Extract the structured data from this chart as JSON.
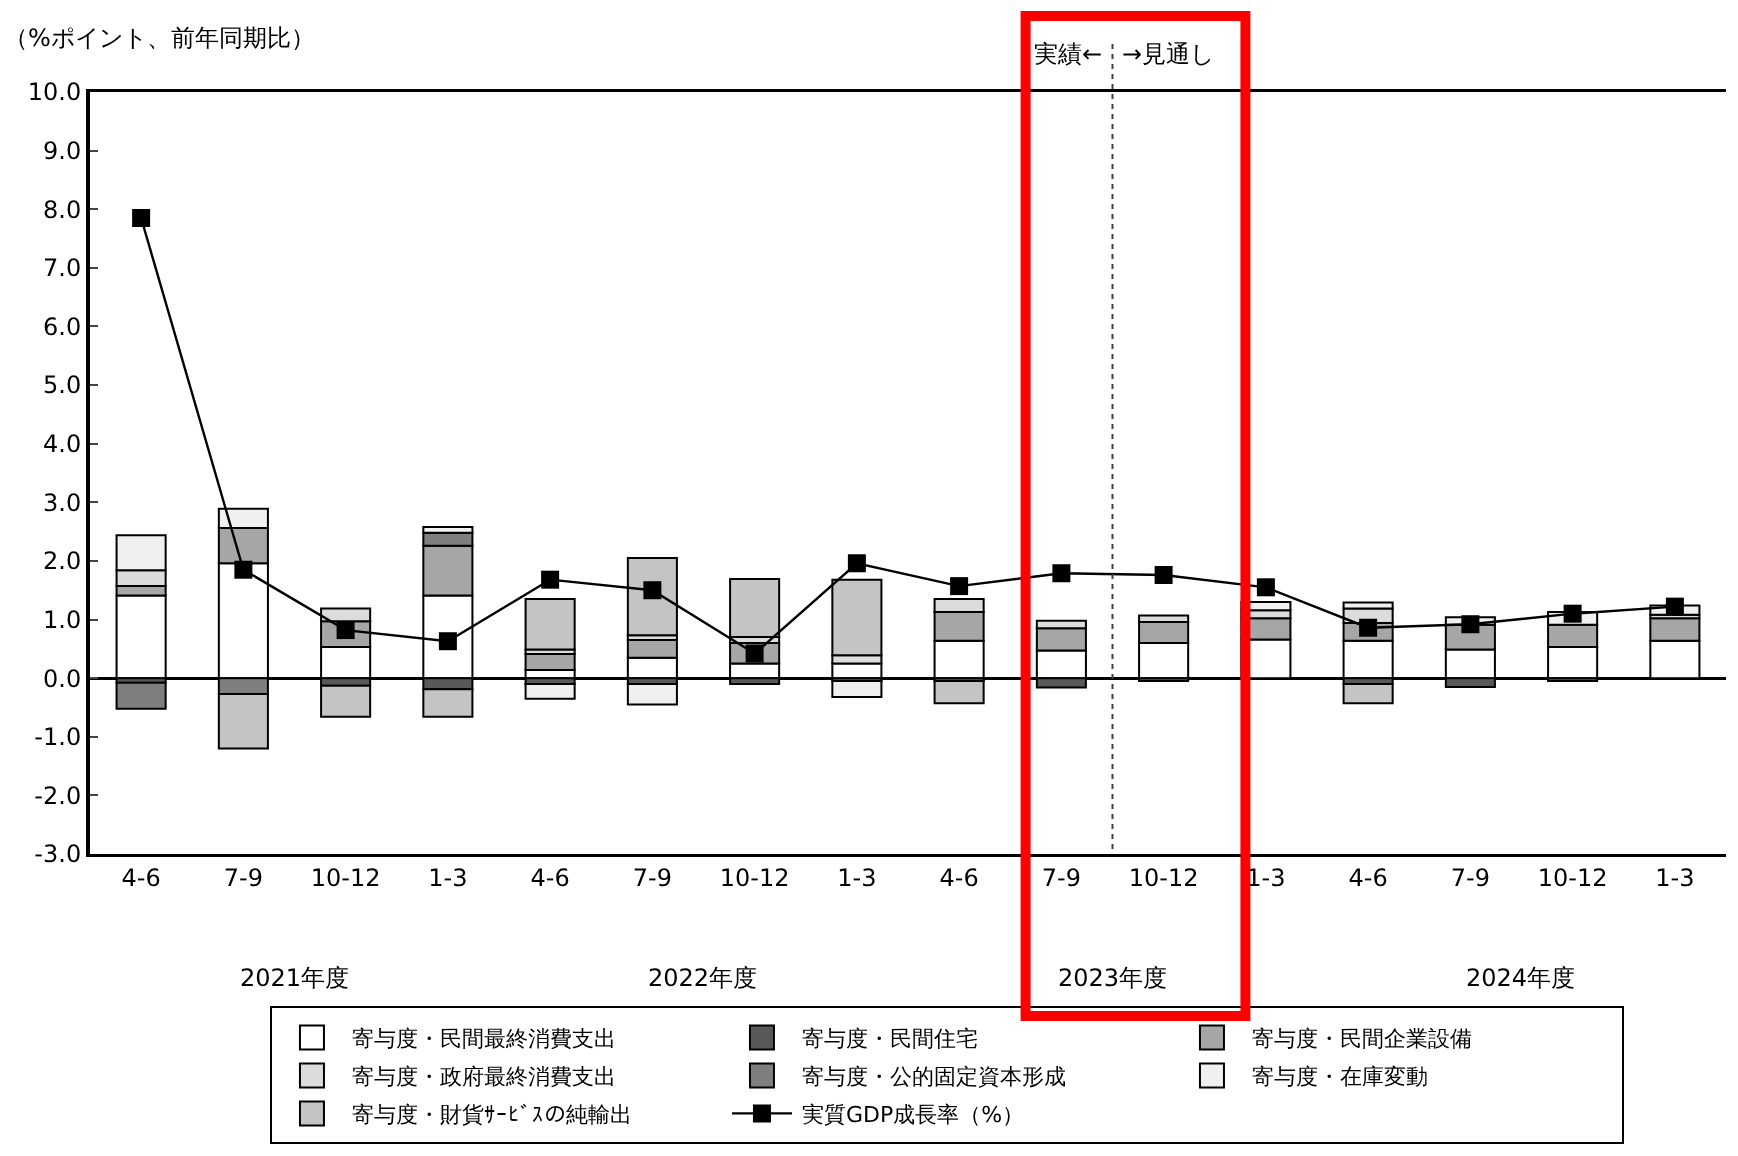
{
  "chart_data": {
    "type": "bar",
    "stacked": true,
    "ylabel": "（%ポイント、前年同期比）",
    "categories": [
      "4-6",
      "7-9",
      "10-12",
      "1-3",
      "4-6",
      "7-9",
      "10-12",
      "1-3",
      "4-6",
      "7-9",
      "10-12",
      "1-3",
      "4-6",
      "7-9",
      "10-12",
      "1-3"
    ],
    "ylim": [
      -3,
      10
    ],
    "yticks": [
      {
        "value": -3,
        "label": "-3.0"
      },
      {
        "value": -2,
        "label": "-2.0"
      },
      {
        "value": -1,
        "label": "-1.0"
      },
      {
        "value": 0,
        "label": "0.0"
      },
      {
        "value": 1,
        "label": "1.0"
      },
      {
        "value": 2,
        "label": "2.0"
      },
      {
        "value": 3,
        "label": "3.0"
      },
      {
        "value": 4,
        "label": "4.0"
      },
      {
        "value": 5,
        "label": "5.0"
      },
      {
        "value": 6,
        "label": "6.0"
      },
      {
        "value": 7,
        "label": "7.0"
      },
      {
        "value": 8,
        "label": "8.0"
      },
      {
        "value": 9,
        "label": "9.0"
      },
      {
        "value": 10,
        "label": "10.0"
      }
    ],
    "legend": "bottom",
    "series": [
      {
        "name": "寄与度・民間最終消費支出",
        "color": "#ffffff",
        "values": [
          1.41,
          1.96,
          0.53,
          1.41,
          0.14,
          0.35,
          0.25,
          0.25,
          0.64,
          0.47,
          0.6,
          0.66,
          0.64,
          0.49,
          0.53,
          0.64
        ]
      },
      {
        "name": "寄与度・民間住宅",
        "color": "#595959",
        "values": [
          -0.08,
          null,
          -0.13,
          -0.19,
          -0.1,
          -0.1,
          -0.1,
          -0.05,
          -0.05,
          -0.16,
          -0.05,
          null,
          -0.1,
          -0.15,
          -0.05,
          null
        ]
      },
      {
        "name": "寄与度・民間企業設備",
        "color": "#a6a6a6",
        "values": [
          0.16,
          0.6,
          0.44,
          0.85,
          0.27,
          0.3,
          0.35,
          null,
          0.49,
          0.38,
          0.36,
          0.36,
          0.3,
          0.42,
          0.38,
          0.38
        ]
      },
      {
        "name": "寄与度・政府最終消費支出",
        "color": "#dcdcdc",
        "values": [
          0.27,
          null,
          0.22,
          null,
          0.08,
          0.08,
          0.1,
          0.14,
          0.22,
          0.13,
          0.11,
          0.14,
          0.25,
          null,
          null,
          0.06
        ]
      },
      {
        "name": "寄与度・公的固定資本形成",
        "color": "#7f7f7f",
        "values": [
          -0.44,
          -0.27,
          null,
          0.22,
          null,
          null,
          null,
          null,
          null,
          null,
          null,
          null,
          null,
          null,
          null,
          null
        ]
      },
      {
        "name": "寄与度・在庫変動",
        "color": "#f0f0f0",
        "values": [
          0.6,
          0.33,
          null,
          0.1,
          -0.25,
          -0.35,
          null,
          -0.27,
          null,
          null,
          null,
          0.14,
          0.1,
          0.13,
          0.22,
          0.16
        ]
      },
      {
        "name": "寄与度・財貨ｻｰﾋﾞｽの純輸出",
        "color": "#c4c4c4",
        "values": [
          null,
          -0.93,
          -0.53,
          -0.47,
          0.86,
          1.32,
          0.99,
          1.29,
          -0.38,
          null,
          null,
          null,
          -0.33,
          null,
          null,
          null
        ]
      },
      {
        "name": "実質GDP成長率（%）",
        "type": "line",
        "color": "#000000",
        "marker": "square",
        "values": [
          7.85,
          1.85,
          0.82,
          0.63,
          1.68,
          1.5,
          0.42,
          1.96,
          1.57,
          1.79,
          1.76,
          1.55,
          0.86,
          0.92,
          1.1,
          1.22
        ]
      }
    ],
    "annotations": [
      "実績←",
      "→見通し",
      "2021年度",
      "2022年度",
      "2023年度",
      "2024年度"
    ]
  }
}
